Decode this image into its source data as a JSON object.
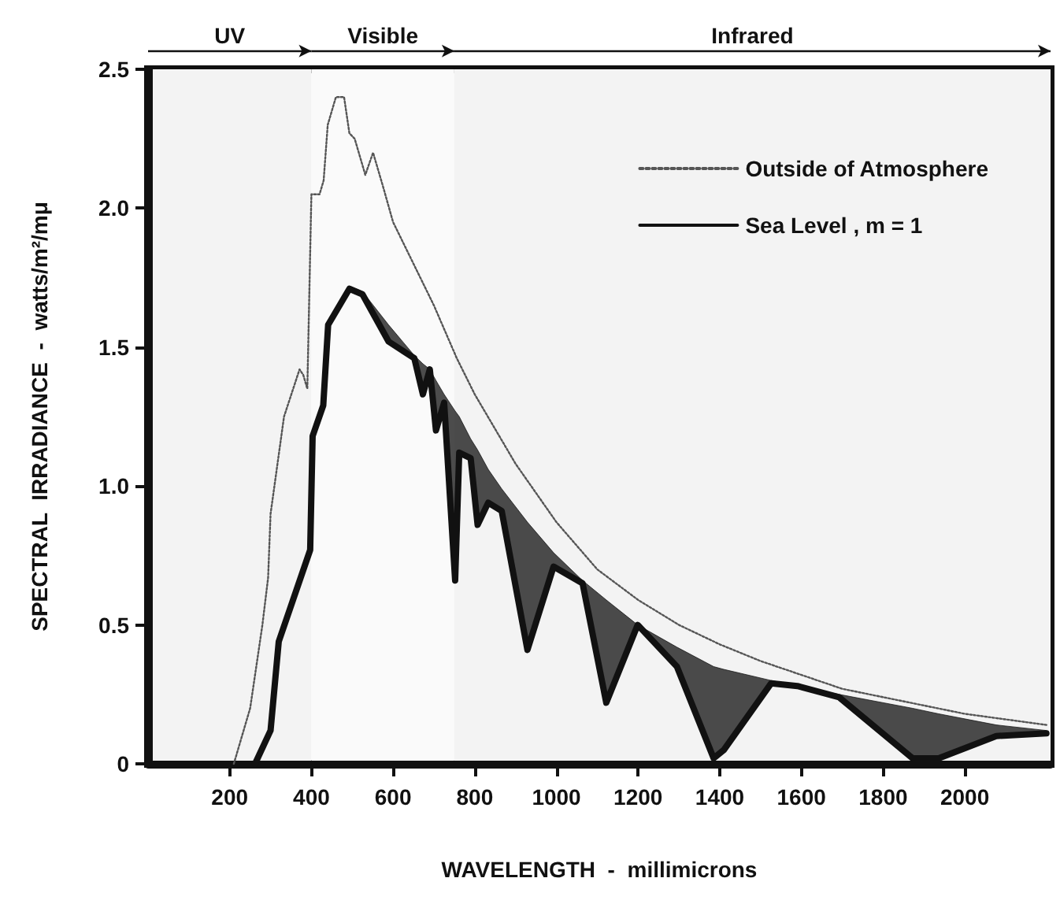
{
  "chart_data": {
    "type": "line",
    "xlabel": "WAVELENGTH  -  millimicrons",
    "ylabel": "SPECTRAL  IRRADIANCE  -  watts/m²/mμ",
    "xlim": [
      0,
      2210
    ],
    "xticks": [
      200,
      400,
      600,
      800,
      1000,
      1200,
      1400,
      1600,
      1800,
      2000
    ],
    "ylim": [
      0,
      2.5
    ],
    "yticks": [
      0,
      0.5,
      {
        "value": 1,
        "label": "1.0"
      },
      1.5,
      {
        "value": 2,
        "label": "2.0"
      },
      2.5
    ],
    "grid": false,
    "legend": "top right",
    "marker": "none",
    "bands": [
      {
        "axis": "x",
        "from": 0,
        "to": 400,
        "label": "UV",
        "color": "#f3f3f3"
      },
      {
        "axis": "x",
        "from": 400,
        "to": 750,
        "label": "Visible",
        "color": "#fafafa"
      },
      {
        "axis": "x",
        "from": 750,
        "to": 2210,
        "label": "Infrared",
        "color": "#f3f3f3"
      }
    ],
    "series": [
      {
        "name": "Outside of Atmosphere",
        "color": "#555555",
        "line_style": "dotted",
        "x": [
          210,
          250,
          280,
          294,
          300,
          333,
          371,
          380,
          390,
          400,
          420,
          430,
          440,
          460,
          480,
          493,
          506,
          520,
          532,
          551,
          575,
          600,
          650,
          700,
          756,
          800,
          900,
          1000,
          1100,
          1200,
          1300,
          1400,
          1500,
          1600,
          1700,
          1800,
          1900,
          2000,
          2100,
          2200
        ],
        "values": [
          0,
          0.2,
          0.5,
          0.67,
          0.9,
          1.25,
          1.42,
          1.4,
          1.35,
          2.05,
          2.05,
          2.1,
          2.3,
          2.4,
          2.4,
          2.27,
          2.25,
          2.18,
          2.12,
          2.2,
          2.08,
          1.95,
          1.8,
          1.65,
          1.46,
          1.33,
          1.08,
          0.87,
          0.7,
          0.59,
          0.5,
          0.43,
          0.37,
          0.32,
          0.27,
          0.24,
          0.21,
          0.18,
          0.16,
          0.14
        ]
      },
      {
        "name": "Sea Level , m = 1",
        "color": "#111111",
        "line_style": "solid",
        "x": [
          262,
          300,
          320,
          397,
          403,
          429,
          441,
          493,
          525,
          589,
          652,
          673,
          690,
          705,
          725,
          752,
          762,
          790,
          807,
          833,
          866,
          929,
          993,
          1064,
          1122,
          1199,
          1295,
          1385,
          1410,
          1526,
          1590,
          1692,
          1872,
          1936,
          2077,
          2200
        ],
        "values": [
          0,
          0.12,
          0.44,
          0.77,
          1.18,
          1.29,
          1.58,
          1.71,
          1.69,
          1.52,
          1.46,
          1.33,
          1.42,
          1.2,
          1.3,
          0.66,
          1.12,
          1.1,
          0.86,
          0.94,
          0.91,
          0.41,
          0.71,
          0.65,
          0.22,
          0.5,
          0.35,
          0.02,
          0.05,
          0.29,
          0.28,
          0.24,
          0.02,
          0.02,
          0.1,
          0.11
        ],
        "lower": [
          0,
          0.12,
          0.44,
          0.77,
          1.18,
          1.29,
          1.58,
          1.71,
          1.69,
          1.52,
          1.46,
          1.33,
          1.42,
          1.2,
          1.3,
          0.66,
          1.12,
          1.1,
          0.86,
          0.94,
          0.91,
          0.41,
          0.71,
          0.65,
          0.22,
          0.5,
          0.35,
          0.02,
          0.05,
          0.29,
          0.28,
          0.24,
          0.02,
          0.02,
          0.1,
          0.11
        ],
        "upper": [
          0,
          0.12,
          0.44,
          0.77,
          1.18,
          1.29,
          1.58,
          1.72,
          1.7,
          1.58,
          1.47,
          1.44,
          1.42,
          1.38,
          1.33,
          1.27,
          1.25,
          1.17,
          1.13,
          1.06,
          0.99,
          0.87,
          0.76,
          0.66,
          0.59,
          0.5,
          0.42,
          0.35,
          0.34,
          0.3,
          0.28,
          0.25,
          0.2,
          0.18,
          0.14,
          0.12
        ]
      }
    ]
  }
}
